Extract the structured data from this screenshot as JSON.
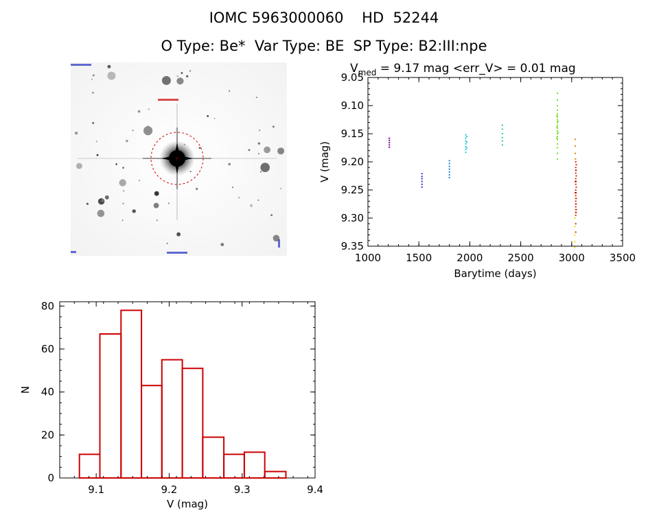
{
  "header": {
    "title_line1": "IOMC 5963000060    HD  52244",
    "title_line2": "O Type: Be*  Var Type: BE  SP Type: B2:III:npe"
  },
  "finder_image": {
    "corner_labels": [
      "",
      "",
      "",
      ""
    ],
    "target_marker_color": "#cc0000"
  },
  "chart_data": [
    {
      "type": "scatter",
      "title": "V = 9.17 mag <err_V> = 0.01 mag",
      "title_parts": {
        "v": "V",
        "sub": "med",
        "rest": " = 9.17 mag <err_V> = 0.01 mag"
      },
      "xlabel": "Barytime (days)",
      "ylabel": "V (mag)",
      "xlim": [
        1000,
        3500
      ],
      "ylim": [
        9.35,
        9.05
      ],
      "y_reversed": true,
      "xticks": [
        "1000",
        "1500",
        "2000",
        "2500",
        "3000",
        "3500"
      ],
      "yticks": [
        "9.05",
        "9.10",
        "9.15",
        "9.20",
        "9.25",
        "9.30",
        "9.35"
      ],
      "grid": false,
      "groups": [
        {
          "color": "#7a00a0",
          "points": [
            [
              1210,
              9.158
            ],
            [
              1210,
              9.162
            ],
            [
              1210,
              9.166
            ],
            [
              1210,
              9.17
            ],
            [
              1210,
              9.174
            ]
          ]
        },
        {
          "color": "#2a2ad0",
          "points": [
            [
              1530,
              9.221
            ],
            [
              1530,
              9.226
            ],
            [
              1530,
              9.23
            ],
            [
              1530,
              9.235
            ],
            [
              1530,
              9.24
            ],
            [
              1530,
              9.245
            ]
          ]
        },
        {
          "color": "#1a7ad0",
          "points": [
            [
              1800,
              9.198
            ],
            [
              1800,
              9.203
            ],
            [
              1800,
              9.208
            ],
            [
              1800,
              9.213
            ],
            [
              1800,
              9.218
            ],
            [
              1800,
              9.223
            ],
            [
              1800,
              9.228
            ]
          ]
        },
        {
          "color": "#20c8d8",
          "points": [
            [
              1960,
              9.152
            ],
            [
              1960,
              9.158
            ],
            [
              1960,
              9.163
            ],
            [
              1960,
              9.168
            ],
            [
              1960,
              9.173
            ],
            [
              1960,
              9.178
            ],
            [
              1960,
              9.183
            ],
            [
              1970,
              9.155
            ],
            [
              1970,
              9.165
            ],
            [
              1970,
              9.175
            ]
          ]
        },
        {
          "color": "#20d080",
          "points": [
            [
              2320,
              9.135
            ],
            [
              2320,
              9.142
            ],
            [
              2320,
              9.15
            ],
            [
              2320,
              9.157
            ],
            [
              2320,
              9.163
            ],
            [
              2320,
              9.17
            ]
          ]
        },
        {
          "color": "#70e020",
          "points": [
            [
              2860,
              9.078
            ],
            [
              2860,
              9.09
            ],
            [
              2860,
              9.1
            ],
            [
              2860,
              9.108
            ],
            [
              2860,
              9.115
            ],
            [
              2860,
              9.12
            ],
            [
              2860,
              9.125
            ],
            [
              2860,
              9.13
            ],
            [
              2860,
              9.135
            ],
            [
              2860,
              9.14
            ],
            [
              2860,
              9.145
            ],
            [
              2860,
              9.15
            ],
            [
              2860,
              9.155
            ],
            [
              2860,
              9.16
            ],
            [
              2860,
              9.168
            ],
            [
              2860,
              9.175
            ],
            [
              2860,
              9.185
            ],
            [
              2860,
              9.195
            ],
            [
              2855,
              9.118
            ],
            [
              2855,
              9.138
            ],
            [
              2855,
              9.158
            ],
            [
              2865,
              9.128
            ],
            [
              2865,
              9.148
            ]
          ]
        },
        {
          "color": "#e8e000",
          "points": [
            [
              3032,
              9.3
            ],
            [
              3032,
              9.315
            ],
            [
              3032,
              9.33
            ],
            [
              3032,
              9.342
            ],
            [
              3032,
              9.352
            ]
          ]
        },
        {
          "color": "#e08a00",
          "points": [
            [
              3035,
              9.16
            ],
            [
              3035,
              9.172
            ],
            [
              3035,
              9.185
            ],
            [
              3038,
              9.195
            ],
            [
              3038,
              9.265
            ],
            [
              3038,
              9.285
            ]
          ]
        },
        {
          "color": "#d83000",
          "points": [
            [
              3040,
              9.2
            ],
            [
              3040,
              9.21
            ],
            [
              3040,
              9.22
            ],
            [
              3040,
              9.23
            ],
            [
              3040,
              9.24
            ],
            [
              3040,
              9.25
            ],
            [
              3040,
              9.26
            ],
            [
              3040,
              9.27
            ],
            [
              3040,
              9.28
            ],
            [
              3040,
              9.295
            ],
            [
              3040,
              9.31
            ],
            [
              3040,
              9.325
            ],
            [
              3045,
              9.205
            ],
            [
              3045,
              9.225
            ],
            [
              3045,
              9.245
            ],
            [
              3045,
              9.265
            ],
            [
              3045,
              9.285
            ],
            [
              3035,
              9.235
            ],
            [
              3035,
              9.255
            ]
          ]
        },
        {
          "color": "#a00000",
          "points": [
            [
              3042,
              9.215
            ],
            [
              3042,
              9.235
            ],
            [
              3042,
              9.255
            ],
            [
              3042,
              9.275
            ],
            [
              3042,
              9.29
            ]
          ]
        }
      ]
    },
    {
      "type": "bar",
      "subtype": "histogram",
      "xlabel": "V (mag)",
      "ylabel": "N",
      "xlim": [
        9.05,
        9.4
      ],
      "ylim": [
        0,
        82
      ],
      "xticks": [
        "9.1",
        "9.2",
        "9.3",
        "9.4"
      ],
      "yticks": [
        "0",
        "20",
        "40",
        "60",
        "80"
      ],
      "bar_color": "#cc0000",
      "bins": [
        {
          "x0": 9.077,
          "x1": 9.105,
          "count": 11
        },
        {
          "x0": 9.105,
          "x1": 9.134,
          "count": 67
        },
        {
          "x0": 9.134,
          "x1": 9.162,
          "count": 78
        },
        {
          "x0": 9.162,
          "x1": 9.19,
          "count": 43
        },
        {
          "x0": 9.19,
          "x1": 9.218,
          "count": 55
        },
        {
          "x0": 9.218,
          "x1": 9.246,
          "count": 51
        },
        {
          "x0": 9.246,
          "x1": 9.275,
          "count": 19
        },
        {
          "x0": 9.275,
          "x1": 9.303,
          "count": 11
        },
        {
          "x0": 9.303,
          "x1": 9.331,
          "count": 12
        },
        {
          "x0": 9.331,
          "x1": 9.36,
          "count": 3
        }
      ]
    }
  ]
}
